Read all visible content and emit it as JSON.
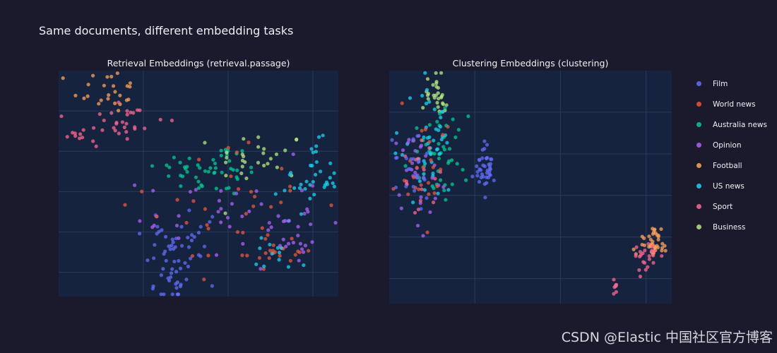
{
  "title": "Same documents, different embedding tasks",
  "watermark": "CSDN @Elastic 中国社区官方博客",
  "colors": {
    "background": "#1b1a2c",
    "plot_bg": "#16233f",
    "grid": "#2a3a5c"
  },
  "legend": [
    {
      "name": "Film",
      "color": "#636efa"
    },
    {
      "name": "World news",
      "color": "#ef553b"
    },
    {
      "name": "Australia news",
      "color": "#00cc96"
    },
    {
      "name": "Opinion",
      "color": "#ab63fa"
    },
    {
      "name": "Football",
      "color": "#ffa15a"
    },
    {
      "name": "US news",
      "color": "#19d3f3"
    },
    {
      "name": "Sport",
      "color": "#ff6692"
    },
    {
      "name": "Business",
      "color": "#b6e880"
    }
  ],
  "chart_data": [
    {
      "type": "scatter",
      "title": "Retrieval Embeddings (retrieval.passage)",
      "xlabel": "",
      "ylabel": "",
      "xlim": [
        0,
        100
      ],
      "ylim": [
        0,
        100
      ],
      "grid": true,
      "clusters": [
        {
          "category": "Film",
          "center": [
            41,
            12
          ],
          "spread": [
            5,
            10
          ],
          "n": 45
        },
        {
          "category": "Film",
          "center": [
            48,
            28
          ],
          "spread": [
            10,
            6
          ],
          "n": 20
        },
        {
          "category": "Football",
          "center": [
            17,
            91
          ],
          "spread": [
            6,
            5
          ],
          "n": 25
        },
        {
          "category": "Sport",
          "center": [
            22,
            77
          ],
          "spread": [
            8,
            6
          ],
          "n": 30
        },
        {
          "category": "Sport",
          "center": [
            6,
            71
          ],
          "spread": [
            2,
            2
          ],
          "n": 8
        },
        {
          "category": "Australia news",
          "center": [
            55,
            56
          ],
          "spread": [
            10,
            6
          ],
          "n": 50
        },
        {
          "category": "Business",
          "center": [
            72,
            62
          ],
          "spread": [
            8,
            6
          ],
          "n": 28
        },
        {
          "category": "US news",
          "center": [
            90,
            52
          ],
          "spread": [
            5,
            8
          ],
          "n": 35
        },
        {
          "category": "Opinion",
          "center": [
            62,
            35
          ],
          "spread": [
            16,
            12
          ],
          "n": 40
        },
        {
          "category": "World news",
          "center": [
            64,
            40
          ],
          "spread": [
            16,
            14
          ],
          "n": 35
        },
        {
          "category": "World news",
          "center": [
            80,
            20
          ],
          "spread": [
            6,
            4
          ],
          "n": 18
        },
        {
          "category": "US news",
          "center": [
            80,
            19
          ],
          "spread": [
            5,
            4
          ],
          "n": 12
        },
        {
          "category": "Opinion",
          "center": [
            83,
            27
          ],
          "spread": [
            3,
            6
          ],
          "n": 15
        }
      ]
    },
    {
      "type": "scatter",
      "title": "Clustering Embeddings (clustering)",
      "xlabel": "",
      "ylabel": "",
      "xlim": [
        0,
        100
      ],
      "ylim": [
        0,
        100
      ],
      "grid": true,
      "clusters": [
        {
          "category": "Business",
          "center": [
            17,
            90
          ],
          "spread": [
            2.5,
            5
          ],
          "n": 28
        },
        {
          "category": "Australia news",
          "center": [
            17,
            63
          ],
          "spread": [
            5,
            9
          ],
          "n": 45
        },
        {
          "category": "US news",
          "center": [
            14,
            68
          ],
          "spread": [
            5,
            12
          ],
          "n": 45
        },
        {
          "category": "Opinion",
          "center": [
            10,
            58
          ],
          "spread": [
            5,
            12
          ],
          "n": 30
        },
        {
          "category": "World news",
          "center": [
            11,
            55
          ],
          "spread": [
            5,
            10
          ],
          "n": 25
        },
        {
          "category": "Sport",
          "center": [
            12,
            55
          ],
          "spread": [
            5,
            8
          ],
          "n": 15
        },
        {
          "category": "Film",
          "center": [
            34,
            58
          ],
          "spread": [
            2,
            5
          ],
          "n": 40
        },
        {
          "category": "Film",
          "center": [
            9,
            56
          ],
          "spread": [
            4,
            8
          ],
          "n": 25
        },
        {
          "category": "Football",
          "center": [
            93,
            26
          ],
          "spread": [
            2.5,
            3
          ],
          "n": 40
        },
        {
          "category": "Sport",
          "center": [
            90,
            20
          ],
          "spread": [
            2.5,
            4
          ],
          "n": 22
        },
        {
          "category": "Sport",
          "center": [
            80,
            7
          ],
          "spread": [
            0.6,
            1.8
          ],
          "n": 8
        }
      ]
    }
  ]
}
